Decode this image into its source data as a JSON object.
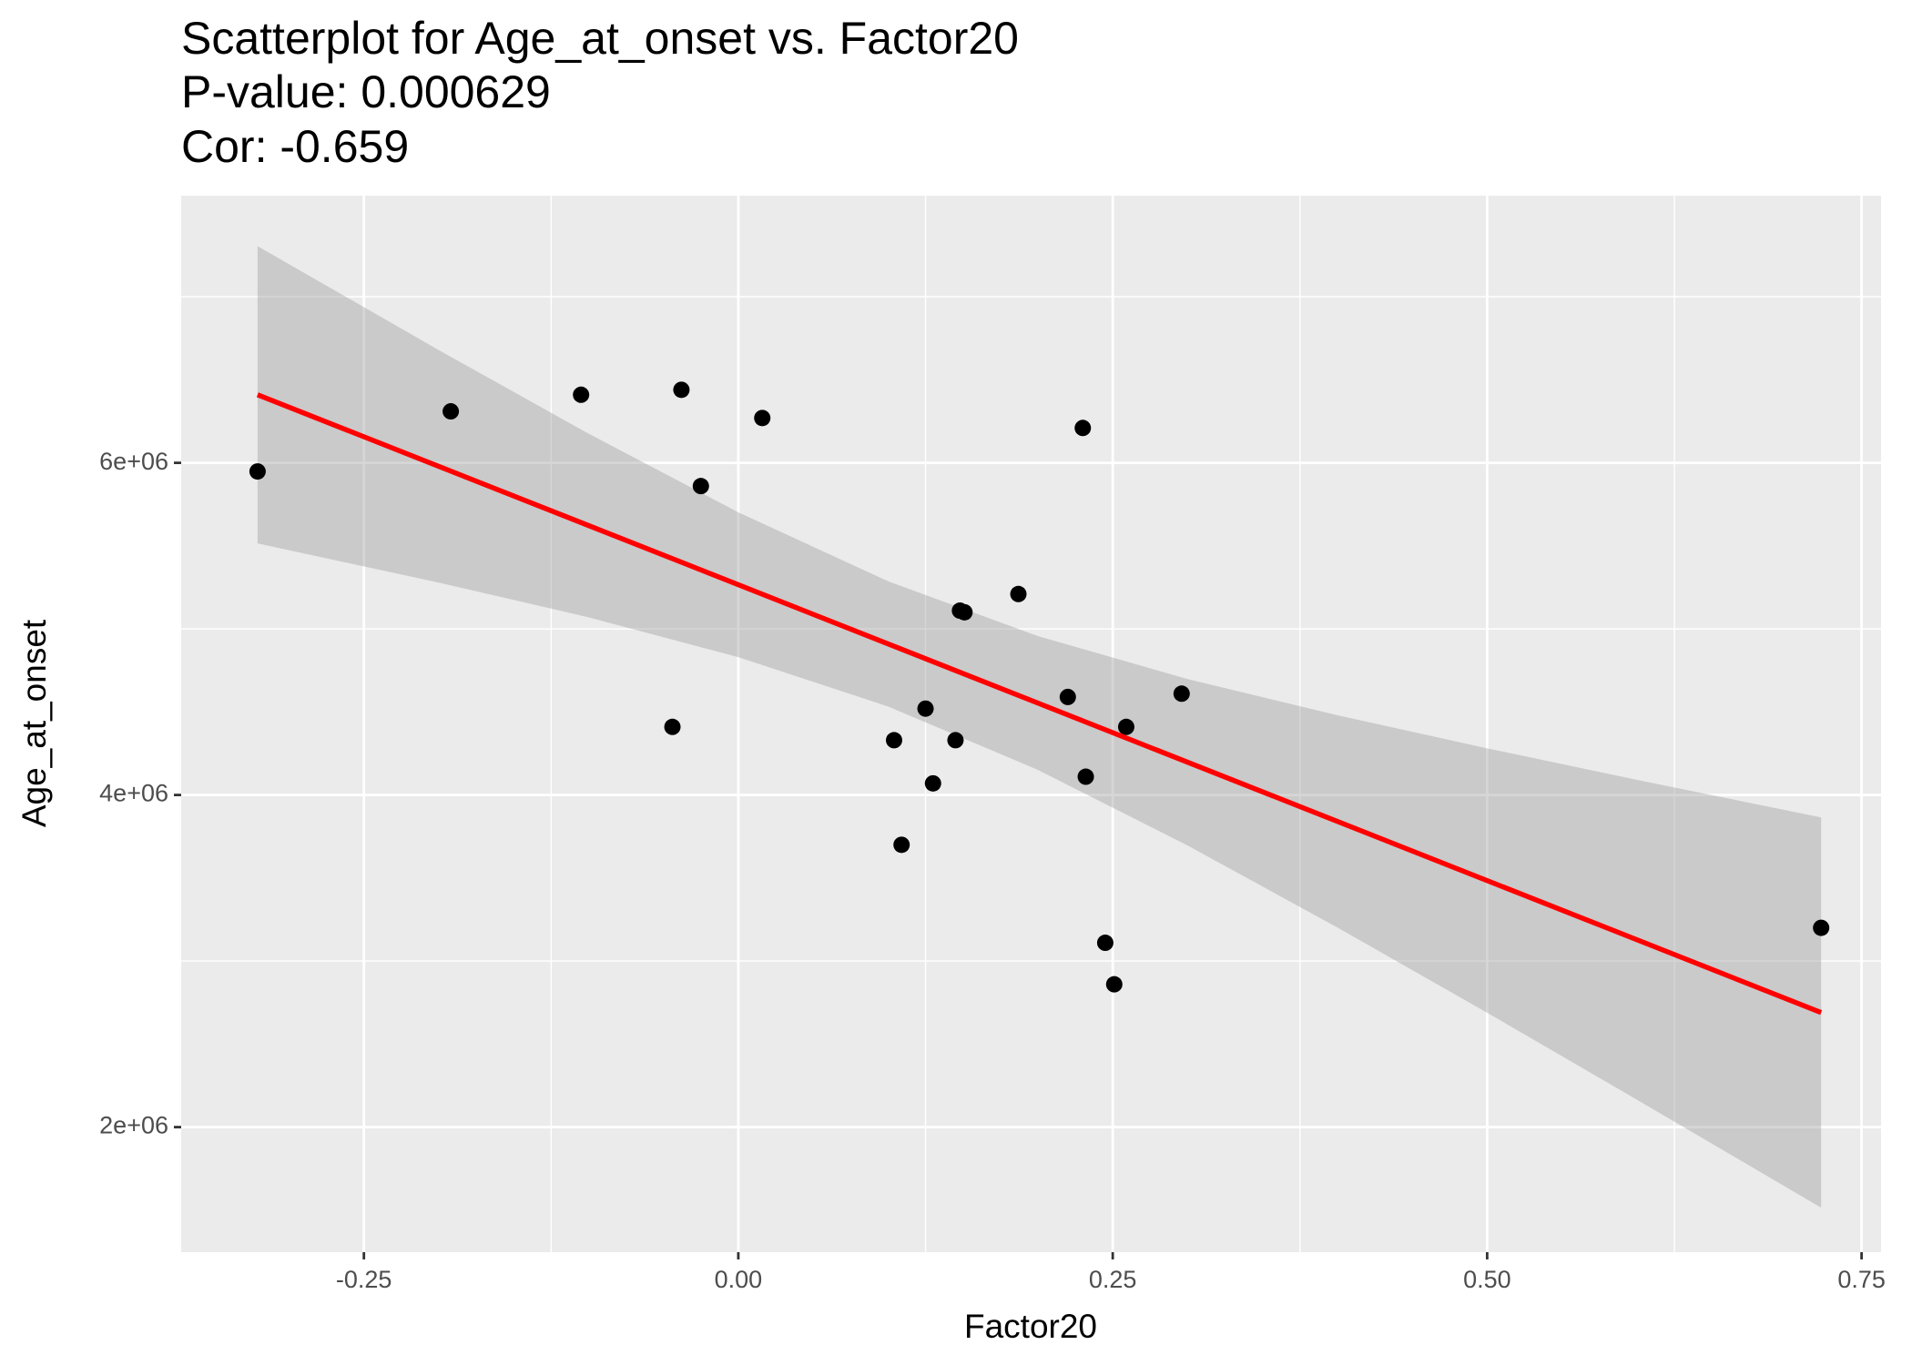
{
  "chart_data": {
    "type": "scatter",
    "title": "Scatterplot for Age_at_onset vs. Factor20",
    "subtitle_lines": [
      "P-value: 0.000629",
      "Cor: -0.659"
    ],
    "x_label": "Factor20",
    "y_label": "Age_at_onset",
    "x": [
      -0.321,
      -0.192,
      -0.105,
      -0.038,
      -0.025,
      0.016,
      -0.044,
      0.23,
      0.187,
      0.148,
      0.151,
      0.125,
      0.104,
      0.145,
      0.13,
      0.22,
      0.296,
      0.259,
      0.232,
      0.109,
      0.245,
      0.251,
      0.723
    ],
    "values": [
      5948000,
      6310000,
      6410000,
      6440000,
      5860000,
      6270000,
      4410000,
      6210000,
      5210000,
      5110000,
      5100000,
      4520000,
      4330000,
      4330000,
      4070000,
      4590000,
      4610000,
      4410000,
      4110000,
      3700000,
      3110000,
      2860000,
      3200000
    ],
    "color": "#000000",
    "fit": {
      "color": "#ff0000",
      "x": [
        -0.321,
        0.723
      ],
      "y": [
        6410000,
        2690000
      ]
    },
    "band": {
      "color": "#999999",
      "x": [
        -0.321,
        -0.2,
        -0.1,
        0,
        0.1,
        0.2,
        0.3,
        0.4,
        0.5,
        0.6,
        0.723
      ],
      "lower": [
        5515000,
        5279000,
        5070000,
        4830000,
        4533000,
        4151000,
        3696000,
        3202000,
        2689000,
        2165000,
        1515000
      ],
      "upper": [
        7305000,
        6679000,
        6176000,
        5702000,
        5287000,
        4957000,
        4698000,
        4480000,
        4281000,
        4091000,
        3865000
      ]
    },
    "xlim": [
      -0.372,
      0.763
    ],
    "ylim": [
      1247000,
      7609000
    ],
    "xticks": [
      -0.25,
      {
        "value": 0,
        "label": "0.00"
      },
      0.25,
      {
        "value": 0.5,
        "label": "0.50"
      },
      0.75
    ],
    "yticks": [
      {
        "value": 2000000,
        "label": "2e+06"
      },
      {
        "value": 4000000,
        "label": "4e+06"
      },
      {
        "value": 6000000,
        "label": "6e+06"
      }
    ],
    "x_minor_grid": [
      -0.125,
      0.125,
      0.375,
      0.625
    ],
    "y_minor_grid": [
      3000000,
      5000000,
      7000000
    ],
    "grid": true
  }
}
